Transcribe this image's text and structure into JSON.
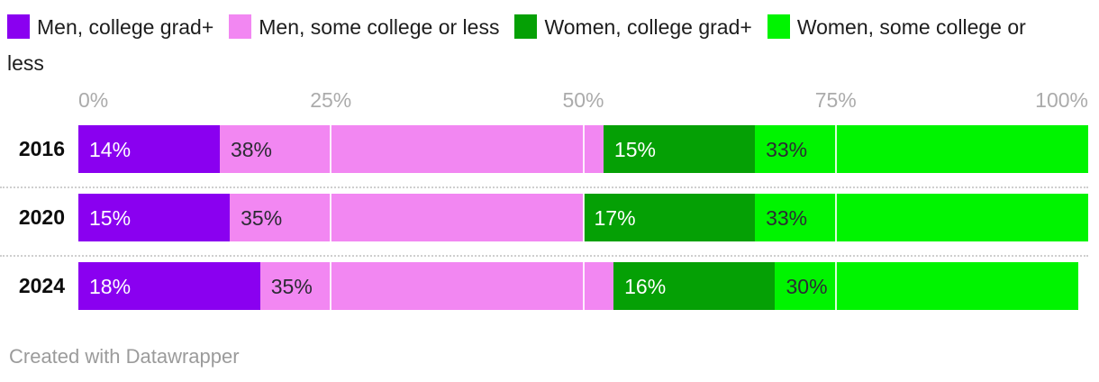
{
  "chart_data": {
    "type": "bar",
    "stacked": true,
    "orientation": "horizontal",
    "categories": [
      "2016",
      "2020",
      "2024"
    ],
    "series": [
      {
        "name": "Men, college grad+",
        "color": "#8A00F0",
        "label_color": "#FFFFFF",
        "values": [
          14,
          15,
          18
        ]
      },
      {
        "name": "Men, some college or less",
        "color": "#F287F2",
        "label_color": "#2B2B33",
        "values": [
          38,
          35,
          35
        ]
      },
      {
        "name": "Women, college grad+",
        "color": "#05A005",
        "label_color": "#FFFFFF",
        "values": [
          15,
          17,
          16
        ]
      },
      {
        "name": "Women, some college or less",
        "color": "#00F400",
        "label_color": "#2B2B33",
        "values": [
          33,
          33,
          30
        ]
      }
    ],
    "value_suffix": "%",
    "xlim": [
      0,
      100
    ],
    "x_ticks": [
      "0%",
      "25%",
      "50%",
      "75%",
      "100%"
    ],
    "tick_color": "#ABABAB",
    "gridline_color": "#FFFFFF",
    "grid": true,
    "legend_position": "top"
  },
  "footer": {
    "credit": "Created with Datawrapper"
  }
}
